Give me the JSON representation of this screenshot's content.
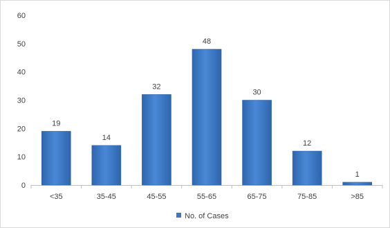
{
  "chart_data": {
    "type": "bar",
    "categories": [
      "<35",
      "35-45",
      "45-55",
      "55-65",
      "65-75",
      "75-85",
      ">85"
    ],
    "series": [
      {
        "name": "No. of Cases",
        "values": [
          19,
          14,
          32,
          48,
          30,
          12,
          1
        ],
        "color": "#3a78c6"
      }
    ],
    "ylim": [
      0,
      60
    ],
    "yticks": [
      0,
      10,
      20,
      30,
      40,
      50,
      60
    ],
    "grid": false,
    "legend": "bottom-center",
    "axis_color": "#bfbfbf"
  }
}
